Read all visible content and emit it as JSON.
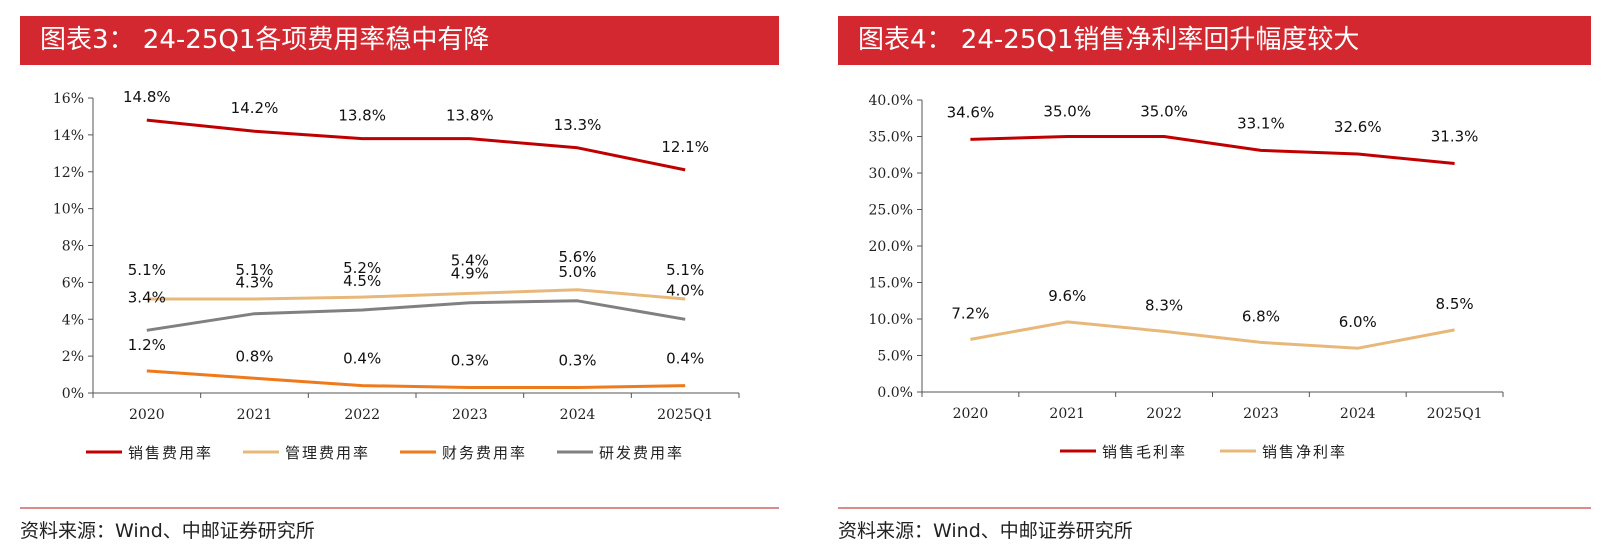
{
  "colors": {
    "title_bg": "#d3282f",
    "axis": "#555555"
  },
  "panels": [
    {
      "title": "图表3： 24-25Q1各项费用率稳中有降",
      "source": "资料来源：Wind、中邮证券研究所"
    },
    {
      "title": "图表4： 24-25Q1销售净利率回升幅度较大",
      "source": "资料来源：Wind、中邮证券研究所"
    }
  ],
  "chart_data": [
    {
      "type": "line",
      "title": "24-25Q1各项费用率稳中有降",
      "categories": [
        "2020",
        "2021",
        "2022",
        "2023",
        "2024",
        "2025Q1"
      ],
      "ylim": [
        0,
        16
      ],
      "yticks": [
        0,
        2,
        4,
        6,
        8,
        10,
        12,
        14,
        16
      ],
      "ytick_labels": [
        "0%",
        "2%",
        "4%",
        "6%",
        "8%",
        "10%",
        "12%",
        "14%",
        "16%"
      ],
      "legend_position": "bottom",
      "series": [
        {
          "name": "销售费用率",
          "color": "#c00000",
          "values": [
            14.8,
            14.2,
            13.8,
            13.8,
            13.3,
            12.1
          ],
          "labels": [
            "14.8%",
            "14.2%",
            "13.8%",
            "13.8%",
            "13.3%",
            "12.1%"
          ]
        },
        {
          "name": "管理费用率",
          "color": "#e8b87a",
          "values": [
            5.1,
            5.1,
            5.2,
            5.4,
            5.6,
            5.1
          ],
          "labels": [
            "5.1%",
            "5.1%",
            "5.2%",
            "5.4%",
            "5.6%",
            "5.1%"
          ]
        },
        {
          "name": "财务费用率",
          "color": "#ee7a1c",
          "values": [
            1.2,
            0.8,
            0.4,
            0.3,
            0.3,
            0.4
          ],
          "labels": [
            "1.2%",
            "0.8%",
            "0.4%",
            "0.3%",
            "0.3%",
            "0.4%"
          ]
        },
        {
          "name": "研发费用率",
          "color": "#808080",
          "values": [
            3.4,
            4.3,
            4.5,
            4.9,
            5.0,
            4.0
          ],
          "labels": [
            "3.4%",
            "4.3%",
            "4.5%",
            "4.9%",
            "5.0%",
            "4.0%"
          ]
        }
      ]
    },
    {
      "type": "line",
      "title": "24-25Q1销售净利率回升幅度较大",
      "categories": [
        "2020",
        "2021",
        "2022",
        "2023",
        "2024",
        "2025Q1"
      ],
      "ylim": [
        0,
        40
      ],
      "yticks": [
        0,
        5,
        10,
        15,
        20,
        25,
        30,
        35,
        40
      ],
      "ytick_labels": [
        "0.0%",
        "5.0%",
        "10.0%",
        "15.0%",
        "20.0%",
        "25.0%",
        "30.0%",
        "35.0%",
        "40.0%"
      ],
      "legend_position": "bottom",
      "series": [
        {
          "name": "销售毛利率",
          "color": "#c00000",
          "values": [
            34.6,
            35.0,
            35.0,
            33.1,
            32.6,
            31.3
          ],
          "labels": [
            "34.6%",
            "35.0%",
            "35.0%",
            "33.1%",
            "32.6%",
            "31.3%"
          ]
        },
        {
          "name": "销售净利率",
          "color": "#e8b87a",
          "values": [
            7.2,
            9.6,
            8.3,
            6.8,
            6.0,
            8.5
          ],
          "labels": [
            "7.2%",
            "9.6%",
            "8.3%",
            "6.8%",
            "6.0%",
            "8.5%"
          ]
        }
      ]
    }
  ]
}
